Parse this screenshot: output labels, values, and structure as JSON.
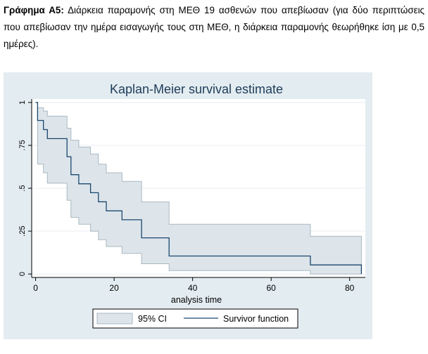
{
  "caption": {
    "label": "Γράφημα Α5:",
    "text": "Διάρκεια παραμονής στη ΜΕΘ 19 ασθενών που απεβίωσαν (για δύο περιπτώσεις που απεβίωσαν την ημέρα εισαγωγής τους στη ΜΕΘ, η διάρκεια παραμονής θεωρήθηκε ίση με 0,5 ημέρες)."
  },
  "colors": {
    "outer_background": "#e3ecf0",
    "plot_background": "#ffffff",
    "ci_fill": "#dde5ea",
    "ci_edge": "#a9b8c2",
    "survivor_line": "#1a476f",
    "grid": "#e8eef2",
    "title": "#1e3c5a"
  },
  "chart_data": {
    "type": "line",
    "title": "Kaplan-Meier survival estimate",
    "xlabel": "analysis time",
    "ylabel": "",
    "xlim": [
      -1,
      84
    ],
    "ylim": [
      -0.02,
      1.02
    ],
    "xticks": [
      0,
      20,
      40,
      60,
      80
    ],
    "xtick_labels": [
      "0",
      "20",
      "40",
      "60",
      "80"
    ],
    "yticks": [
      0,
      0.25,
      0.5,
      0.75,
      1
    ],
    "ytick_labels": [
      "0",
      ".25",
      ".5",
      ".75",
      "1"
    ],
    "grid": true,
    "legend": {
      "position": "bottom",
      "entries": [
        "95% CI",
        "Survivor function"
      ]
    },
    "series": [
      {
        "name": "Survivor function",
        "kind": "step",
        "time": [
          0,
          0.5,
          2,
          3,
          8,
          9,
          11,
          14,
          16,
          18,
          22,
          27,
          34,
          70,
          83
        ],
        "values": [
          1.0,
          0.895,
          0.842,
          0.789,
          0.684,
          0.579,
          0.526,
          0.474,
          0.421,
          0.368,
          0.316,
          0.211,
          0.105,
          0.053,
          0.0
        ]
      },
      {
        "name": "95% CI",
        "kind": "band",
        "time": [
          0,
          0.5,
          2,
          3,
          8,
          9,
          11,
          14,
          16,
          18,
          22,
          27,
          34,
          70,
          83
        ],
        "lower": [
          1.0,
          0.64,
          0.59,
          0.53,
          0.43,
          0.33,
          0.29,
          0.25,
          0.2,
          0.16,
          0.12,
          0.06,
          0.02,
          0.0,
          0.0
        ],
        "upper": [
          1.0,
          0.97,
          0.95,
          0.92,
          0.85,
          0.78,
          0.74,
          0.7,
          0.64,
          0.59,
          0.54,
          0.42,
          0.29,
          0.22,
          0.0
        ]
      }
    ]
  }
}
